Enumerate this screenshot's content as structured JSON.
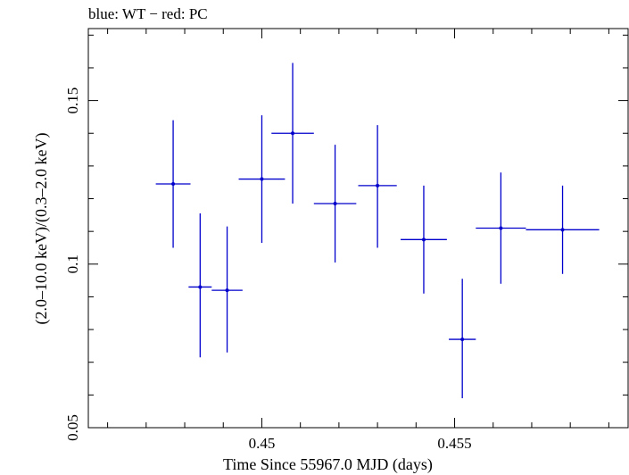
{
  "chart_data": {
    "type": "scatter",
    "title": "blue: WT − red: PC",
    "xlabel": "Time Since 55967.0 MJD (days)",
    "ylabel": "(2.0–10.0 keV)/(0.3–2.0 keV)",
    "xlim": [
      0.4455,
      0.4595
    ],
    "ylim": [
      0.05,
      0.172
    ],
    "x_ticks": [
      0.45,
      0.455
    ],
    "x_tick_labels": [
      "0.45",
      "0.455"
    ],
    "y_ticks": [
      0.05,
      0.1,
      0.15
    ],
    "y_tick_labels": [
      "0.05",
      "0.1",
      "0.15"
    ],
    "grid": false,
    "series": [
      {
        "color": "#0000cc",
        "points": [
          {
            "x": 0.4477,
            "xerr": 0.00045,
            "y": 0.1245,
            "yerr_lo": 0.0195,
            "yerr_hi": 0.0195
          },
          {
            "x": 0.4484,
            "xerr": 0.0003,
            "y": 0.093,
            "yerr_lo": 0.0215,
            "yerr_hi": 0.0225
          },
          {
            "x": 0.4491,
            "xerr": 0.0004,
            "y": 0.092,
            "yerr_lo": 0.019,
            "yerr_hi": 0.0195
          },
          {
            "x": 0.45,
            "xerr": 0.0006,
            "y": 0.126,
            "yerr_lo": 0.0195,
            "yerr_hi": 0.0195
          },
          {
            "x": 0.4508,
            "xerr": 0.00055,
            "y": 0.14,
            "yerr_lo": 0.0215,
            "yerr_hi": 0.0215
          },
          {
            "x": 0.4519,
            "xerr": 0.00055,
            "y": 0.1185,
            "yerr_lo": 0.018,
            "yerr_hi": 0.018
          },
          {
            "x": 0.453,
            "xerr": 0.0005,
            "y": 0.124,
            "yerr_lo": 0.019,
            "yerr_hi": 0.0185
          },
          {
            "x": 0.4542,
            "xerr": 0.0006,
            "y": 0.1075,
            "yerr_lo": 0.0165,
            "yerr_hi": 0.0165
          },
          {
            "x": 0.4552,
            "xerr": 0.00035,
            "y": 0.077,
            "yerr_lo": 0.018,
            "yerr_hi": 0.0185
          },
          {
            "x": 0.4562,
            "xerr": 0.00065,
            "y": 0.111,
            "yerr_lo": 0.017,
            "yerr_hi": 0.017
          },
          {
            "x": 0.4578,
            "xerr": 0.00095,
            "y": 0.1105,
            "yerr_lo": 0.0135,
            "yerr_hi": 0.0135
          }
        ]
      }
    ]
  }
}
